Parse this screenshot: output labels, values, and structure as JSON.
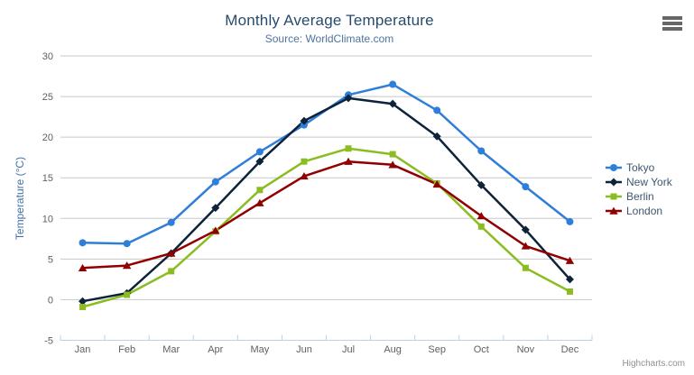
{
  "header": {
    "title": "Monthly Average Temperature",
    "subtitle": "Source: WorldClimate.com"
  },
  "export_menu": {
    "icon": "hamburger-icon"
  },
  "credit": "Highcharts.com",
  "colors": {
    "title": "#274b6d",
    "subtitle": "#4d759e",
    "axis_title": "#4572A7",
    "axis_labels": "#606060",
    "gridline": "#C8C8C8",
    "axis_line": "#C0D0E0",
    "legend_text": "#3E576F",
    "export_icon": "#666666",
    "credit_text": "#909090"
  },
  "chart_data": {
    "type": "line",
    "title": "Monthly Average Temperature",
    "subtitle": "Source: WorldClimate.com",
    "categories": [
      "Jan",
      "Feb",
      "Mar",
      "Apr",
      "May",
      "Jun",
      "Jul",
      "Aug",
      "Sep",
      "Oct",
      "Nov",
      "Dec"
    ],
    "series": [
      {
        "name": "Tokyo",
        "color": "#2f7ed8",
        "marker": "circle",
        "values": [
          7.0,
          6.9,
          9.5,
          14.5,
          18.2,
          21.5,
          25.2,
          26.5,
          23.3,
          18.3,
          13.9,
          9.6
        ]
      },
      {
        "name": "New York",
        "color": "#0d233a",
        "marker": "diamond",
        "values": [
          -0.2,
          0.8,
          5.7,
          11.3,
          17.0,
          22.0,
          24.8,
          24.1,
          20.1,
          14.1,
          8.6,
          2.5
        ]
      },
      {
        "name": "Berlin",
        "color": "#8bbc21",
        "marker": "square",
        "values": [
          -0.9,
          0.6,
          3.5,
          8.4,
          13.5,
          17.0,
          18.6,
          17.9,
          14.3,
          9.0,
          3.9,
          1.0
        ]
      },
      {
        "name": "London",
        "color": "#910000",
        "marker": "triangle",
        "values": [
          3.9,
          4.2,
          5.7,
          8.5,
          11.9,
          15.2,
          17.0,
          16.6,
          14.2,
          10.3,
          6.6,
          4.8
        ]
      }
    ],
    "xlabel": "",
    "ylabel": "Temperature (°C)",
    "ylim": [
      -5,
      30
    ],
    "yticks": [
      -5,
      0,
      5,
      10,
      15,
      20,
      25,
      30
    ],
    "grid": true,
    "legend_position": "right"
  }
}
